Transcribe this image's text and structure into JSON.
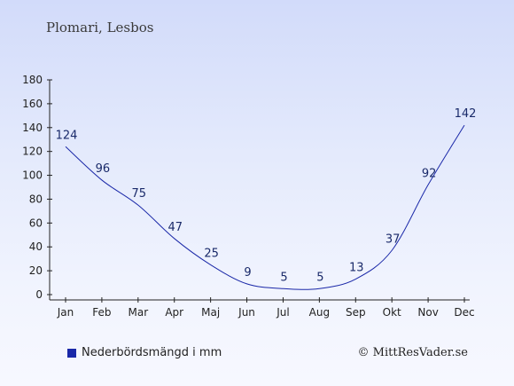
{
  "chart_data": {
    "type": "line",
    "title": "Plomari, Lesbos",
    "categories": [
      "Jan",
      "Feb",
      "Mar",
      "Apr",
      "Maj",
      "Jun",
      "Jul",
      "Aug",
      "Sep",
      "Okt",
      "Nov",
      "Dec"
    ],
    "series": [
      {
        "name": "Nederbördsmängd i mm",
        "values": [
          124,
          96,
          75,
          47,
          25,
          9,
          5,
          5,
          13,
          37,
          92,
          142
        ],
        "color": "#1a28a8"
      }
    ],
    "yticks": [
      "0",
      "20",
      "40",
      "60",
      "80",
      "100",
      "120",
      "140",
      "160",
      "180"
    ],
    "ylim": [
      0,
      180
    ],
    "grid": false,
    "legend": "bottom-left"
  },
  "credit": "© MittResVader.se"
}
